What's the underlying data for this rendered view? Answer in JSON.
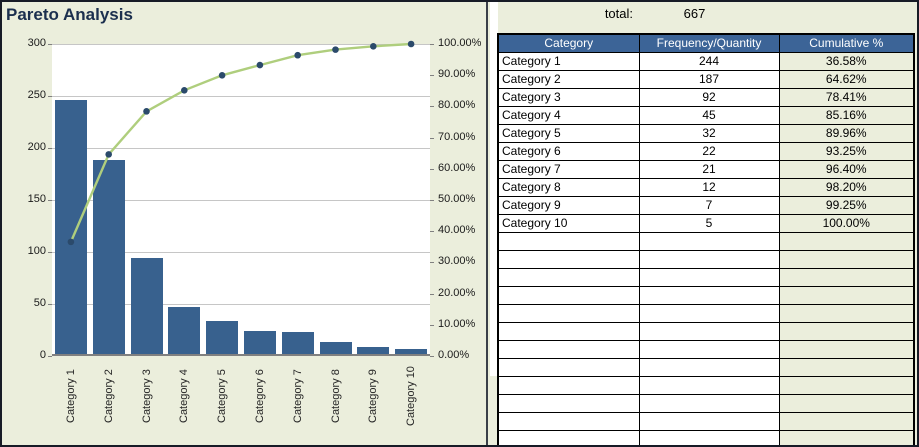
{
  "title": "Pareto Analysis",
  "summary": {
    "total_label": "total:",
    "total_value": "667"
  },
  "table": {
    "headers": [
      "Category",
      "Frequency/Quantity",
      "Cumulative %"
    ],
    "rows": [
      [
        "Category 1",
        "244",
        "36.58%"
      ],
      [
        "Category 2",
        "187",
        "64.62%"
      ],
      [
        "Category 3",
        "92",
        "78.41%"
      ],
      [
        "Category 4",
        "45",
        "85.16%"
      ],
      [
        "Category 5",
        "32",
        "89.96%"
      ],
      [
        "Category 6",
        "22",
        "93.25%"
      ],
      [
        "Category 7",
        "21",
        "96.40%"
      ],
      [
        "Category 8",
        "12",
        "98.20%"
      ],
      [
        "Category 9",
        "7",
        "99.25%"
      ],
      [
        "Category 10",
        "5",
        "100.00%"
      ]
    ],
    "empty_rows": 12
  },
  "chart_data": {
    "type": "bar+line (pareto)",
    "title": "Pareto Analysis",
    "categories": [
      "Category 1",
      "Category 2",
      "Category 3",
      "Category 4",
      "Category 5",
      "Category 6",
      "Category 7",
      "Category 8",
      "Category 9",
      "Category 10"
    ],
    "series": [
      {
        "name": "Frequency/Quantity",
        "type": "bar",
        "axis": "left",
        "values": [
          244,
          187,
          92,
          45,
          32,
          22,
          21,
          12,
          7,
          5
        ]
      },
      {
        "name": "Cumulative %",
        "type": "line",
        "axis": "right",
        "values": [
          36.58,
          64.62,
          78.41,
          85.16,
          89.96,
          93.25,
          96.4,
          98.2,
          99.25,
          100.0
        ]
      }
    ],
    "left_axis": {
      "min": 0,
      "max": 300,
      "step": 50,
      "ticks": [
        "300",
        "250",
        "200",
        "150",
        "100",
        "50",
        "0"
      ]
    },
    "right_axis": {
      "min": 0,
      "max": 100,
      "step": 10,
      "ticks": [
        "100.00%",
        "90.00%",
        "80.00%",
        "70.00%",
        "60.00%",
        "50.00%",
        "40.00%",
        "30.00%",
        "20.00%",
        "10.00%",
        "0.00%"
      ]
    },
    "grid": true,
    "legend": false
  },
  "colors": {
    "background": "#EBEEDC",
    "bar": "#38618E",
    "line": "#AFCE7D",
    "marker": "#2B4A6B",
    "table_header_bg": "#3C6497",
    "table_header_text": "#FFFFFF",
    "cumulative_col_bg": "#EBEEDC",
    "title_text": "#1B2F4E",
    "gridline": "#C6C6C6"
  }
}
